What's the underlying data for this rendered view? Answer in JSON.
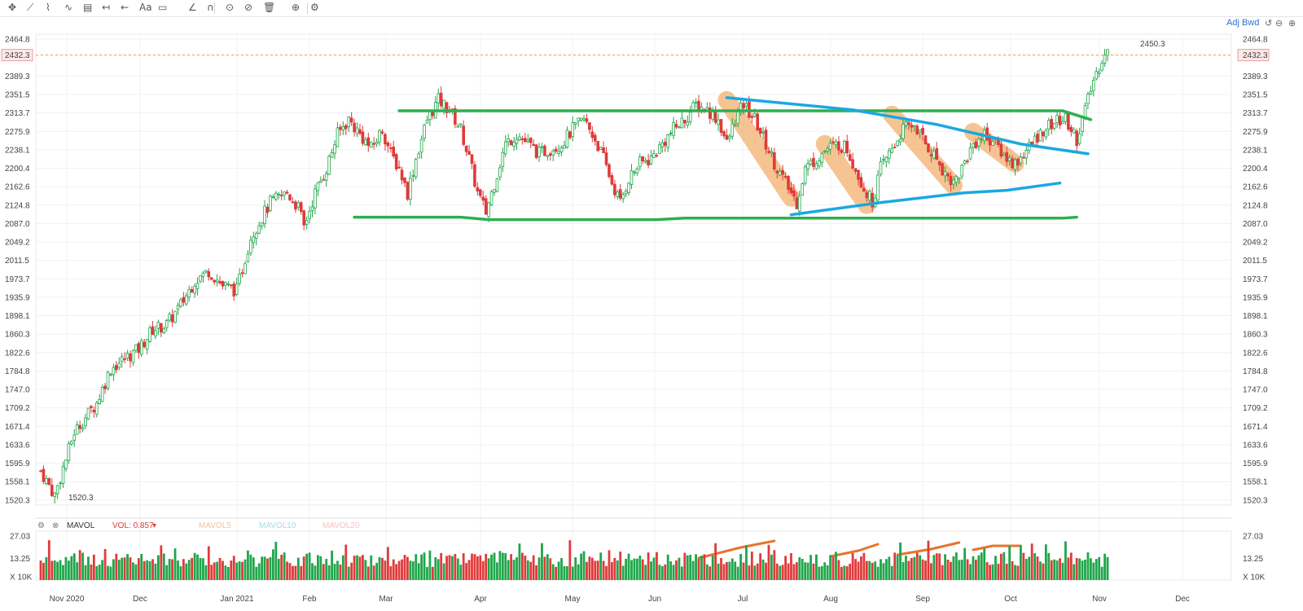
{
  "toolbar": {
    "icons": [
      "crosshair-icon",
      "line-tool-icon",
      "pattern-tool-icon",
      "wave-tool-icon",
      "fib-tool-icon",
      "range-tool-icon",
      "arrow-tool-icon",
      "text-tool-icon",
      "note-tool-icon",
      "ruler-icon",
      "magnet-icon",
      "eye-icon",
      "hide-icon",
      "trash-icon",
      "link-icon",
      "settings-icon"
    ]
  },
  "header": {
    "adj_label": "Adj Bwd",
    "controls": [
      "undo-icon",
      "minus-icon",
      "plus-icon"
    ]
  },
  "volume_panel": {
    "title": "MAVOL",
    "vol_label": "VOL: 0.857",
    "ma5_label": "MAVOL5",
    "ma10_label": "MAVOL10",
    "ma20_label": "MAVOL20",
    "y_ticks": [
      "27.03",
      "13.25",
      "X 10K"
    ]
  },
  "colors": {
    "up": "#1fa64a",
    "down": "#e03a3a",
    "current_price_line": "#f0a040",
    "range_lines": "#2bb04f",
    "wedge_lines": "#1ba8e0",
    "highlight": "#f2a65a",
    "volume_trend": "#e8742a",
    "mavol5": "#f3c2a0",
    "mavol10": "#a8d8ef",
    "mavol20": "#f3c2c2"
  },
  "chart_data": {
    "type": "candlestick",
    "y_ticks": [
      "2464.8",
      "2432.3",
      "2389.3",
      "2351.5",
      "2313.7",
      "2275.9",
      "2238.1",
      "2200.4",
      "2162.6",
      "2124.8",
      "2087.0",
      "2049.2",
      "2011.5",
      "1973.7",
      "1935.9",
      "1898.1",
      "1860.3",
      "1822.6",
      "1784.8",
      "1747.0",
      "1709.2",
      "1671.4",
      "1633.6",
      "1595.9",
      "1558.1",
      "1520.3"
    ],
    "x_ticks": [
      "Nov 2020",
      "Dec",
      "Jan 2021",
      "Feb",
      "Mar",
      "Apr",
      "May",
      "Jun",
      "Jul",
      "Aug",
      "Sep",
      "Oct",
      "Nov",
      "Dec"
    ],
    "ylim": [
      1510,
      2475
    ],
    "current_price": "2432.3",
    "high_label": "2450.3",
    "low_label": "1520.3",
    "price_path": [
      [
        0,
        1580
      ],
      [
        5,
        1530
      ],
      [
        12,
        1660
      ],
      [
        20,
        1720
      ],
      [
        25,
        1790
      ],
      [
        35,
        1830
      ],
      [
        40,
        1870
      ],
      [
        45,
        1880
      ],
      [
        50,
        1920
      ],
      [
        55,
        1970
      ],
      [
        60,
        1990
      ],
      [
        65,
        1960
      ],
      [
        70,
        1950
      ],
      [
        75,
        2060
      ],
      [
        82,
        2130
      ],
      [
        88,
        2150
      ],
      [
        92,
        2120
      ],
      [
        94,
        2080
      ],
      [
        98,
        2150
      ],
      [
        102,
        2200
      ],
      [
        106,
        2270
      ],
      [
        110,
        2300
      ],
      [
        114,
        2270
      ],
      [
        118,
        2240
      ],
      [
        122,
        2280
      ],
      [
        125,
        2230
      ],
      [
        128,
        2200
      ],
      [
        131,
        2150
      ],
      [
        134,
        2220
      ],
      [
        138,
        2300
      ],
      [
        142,
        2340
      ],
      [
        146,
        2320
      ],
      [
        150,
        2280
      ],
      [
        153,
        2220
      ],
      [
        156,
        2150
      ],
      [
        159,
        2110
      ],
      [
        162,
        2170
      ],
      [
        166,
        2250
      ],
      [
        170,
        2270
      ],
      [
        174,
        2250
      ],
      [
        178,
        2230
      ],
      [
        182,
        2240
      ],
      [
        186,
        2250
      ],
      [
        190,
        2280
      ],
      [
        194,
        2300
      ],
      [
        198,
        2260
      ],
      [
        201,
        2220
      ],
      [
        204,
        2170
      ],
      [
        207,
        2130
      ],
      [
        210,
        2180
      ],
      [
        214,
        2210
      ],
      [
        218,
        2220
      ],
      [
        222,
        2250
      ],
      [
        226,
        2280
      ],
      [
        230,
        2300
      ],
      [
        234,
        2330
      ],
      [
        238,
        2320
      ],
      [
        242,
        2300
      ],
      [
        245,
        2250
      ],
      [
        248,
        2300
      ],
      [
        251,
        2330
      ],
      [
        255,
        2300
      ],
      [
        259,
        2250
      ],
      [
        263,
        2200
      ],
      [
        267,
        2160
      ],
      [
        270,
        2130
      ],
      [
        273,
        2200
      ],
      [
        277,
        2220
      ],
      [
        281,
        2240
      ],
      [
        285,
        2250
      ],
      [
        288,
        2240
      ],
      [
        291,
        2200
      ],
      [
        294,
        2160
      ],
      [
        297,
        2130
      ],
      [
        300,
        2200
      ],
      [
        304,
        2240
      ],
      [
        308,
        2280
      ],
      [
        312,
        2290
      ],
      [
        316,
        2250
      ],
      [
        320,
        2220
      ],
      [
        323,
        2190
      ],
      [
        326,
        2170
      ],
      [
        329,
        2200
      ],
      [
        333,
        2250
      ],
      [
        337,
        2270
      ],
      [
        341,
        2250
      ],
      [
        345,
        2220
      ],
      [
        348,
        2210
      ],
      [
        351,
        2230
      ],
      [
        354,
        2250
      ],
      [
        358,
        2280
      ],
      [
        362,
        2295
      ],
      [
        366,
        2300
      ],
      [
        368,
        2280
      ],
      [
        370,
        2260
      ],
      [
        372,
        2300
      ],
      [
        374,
        2340
      ],
      [
        376,
        2380
      ],
      [
        378,
        2410
      ],
      [
        380,
        2440
      ]
    ],
    "range_lines": [
      {
        "name": "top",
        "points": [
          [
            128,
            2318
          ],
          [
            365,
            2318
          ],
          [
            375,
            2300
          ]
        ]
      },
      {
        "name": "bottom",
        "points": [
          [
            112,
            2100
          ],
          [
            150,
            2100
          ],
          [
            160,
            2095
          ],
          [
            220,
            2095
          ],
          [
            230,
            2098
          ],
          [
            365,
            2098
          ],
          [
            370,
            2100
          ]
        ]
      }
    ],
    "wedge_lines": [
      {
        "name": "upper",
        "points": [
          [
            245,
            2345
          ],
          [
            290,
            2320
          ],
          [
            320,
            2290
          ],
          [
            350,
            2250
          ],
          [
            374,
            2230
          ]
        ]
      },
      {
        "name": "lower",
        "points": [
          [
            268,
            2105
          ],
          [
            300,
            2130
          ],
          [
            330,
            2150
          ],
          [
            345,
            2155
          ],
          [
            364,
            2170
          ]
        ]
      }
    ],
    "highlights": [
      {
        "from": [
          245,
          2340
        ],
        "to": [
          268,
          2140
        ]
      },
      {
        "from": [
          280,
          2250
        ],
        "to": [
          295,
          2125
        ]
      },
      {
        "from": [
          304,
          2310
        ],
        "to": [
          326,
          2165
        ]
      },
      {
        "from": [
          333,
          2275
        ],
        "to": [
          348,
          2210
        ]
      }
    ],
    "volume": {
      "max": 30
    },
    "volume_trends": [
      {
        "points": [
          [
            235,
            13.5
          ],
          [
            250,
            20
          ],
          [
            262,
            24
          ]
        ]
      },
      {
        "points": [
          [
            282,
            14.5
          ],
          [
            292,
            18
          ],
          [
            299,
            22
          ]
        ]
      },
      {
        "points": [
          [
            306,
            15.5
          ],
          [
            318,
            19
          ],
          [
            328,
            23
          ]
        ]
      },
      {
        "points": [
          [
            333,
            18.5
          ],
          [
            340,
            21
          ],
          [
            350,
            21
          ]
        ]
      }
    ]
  }
}
